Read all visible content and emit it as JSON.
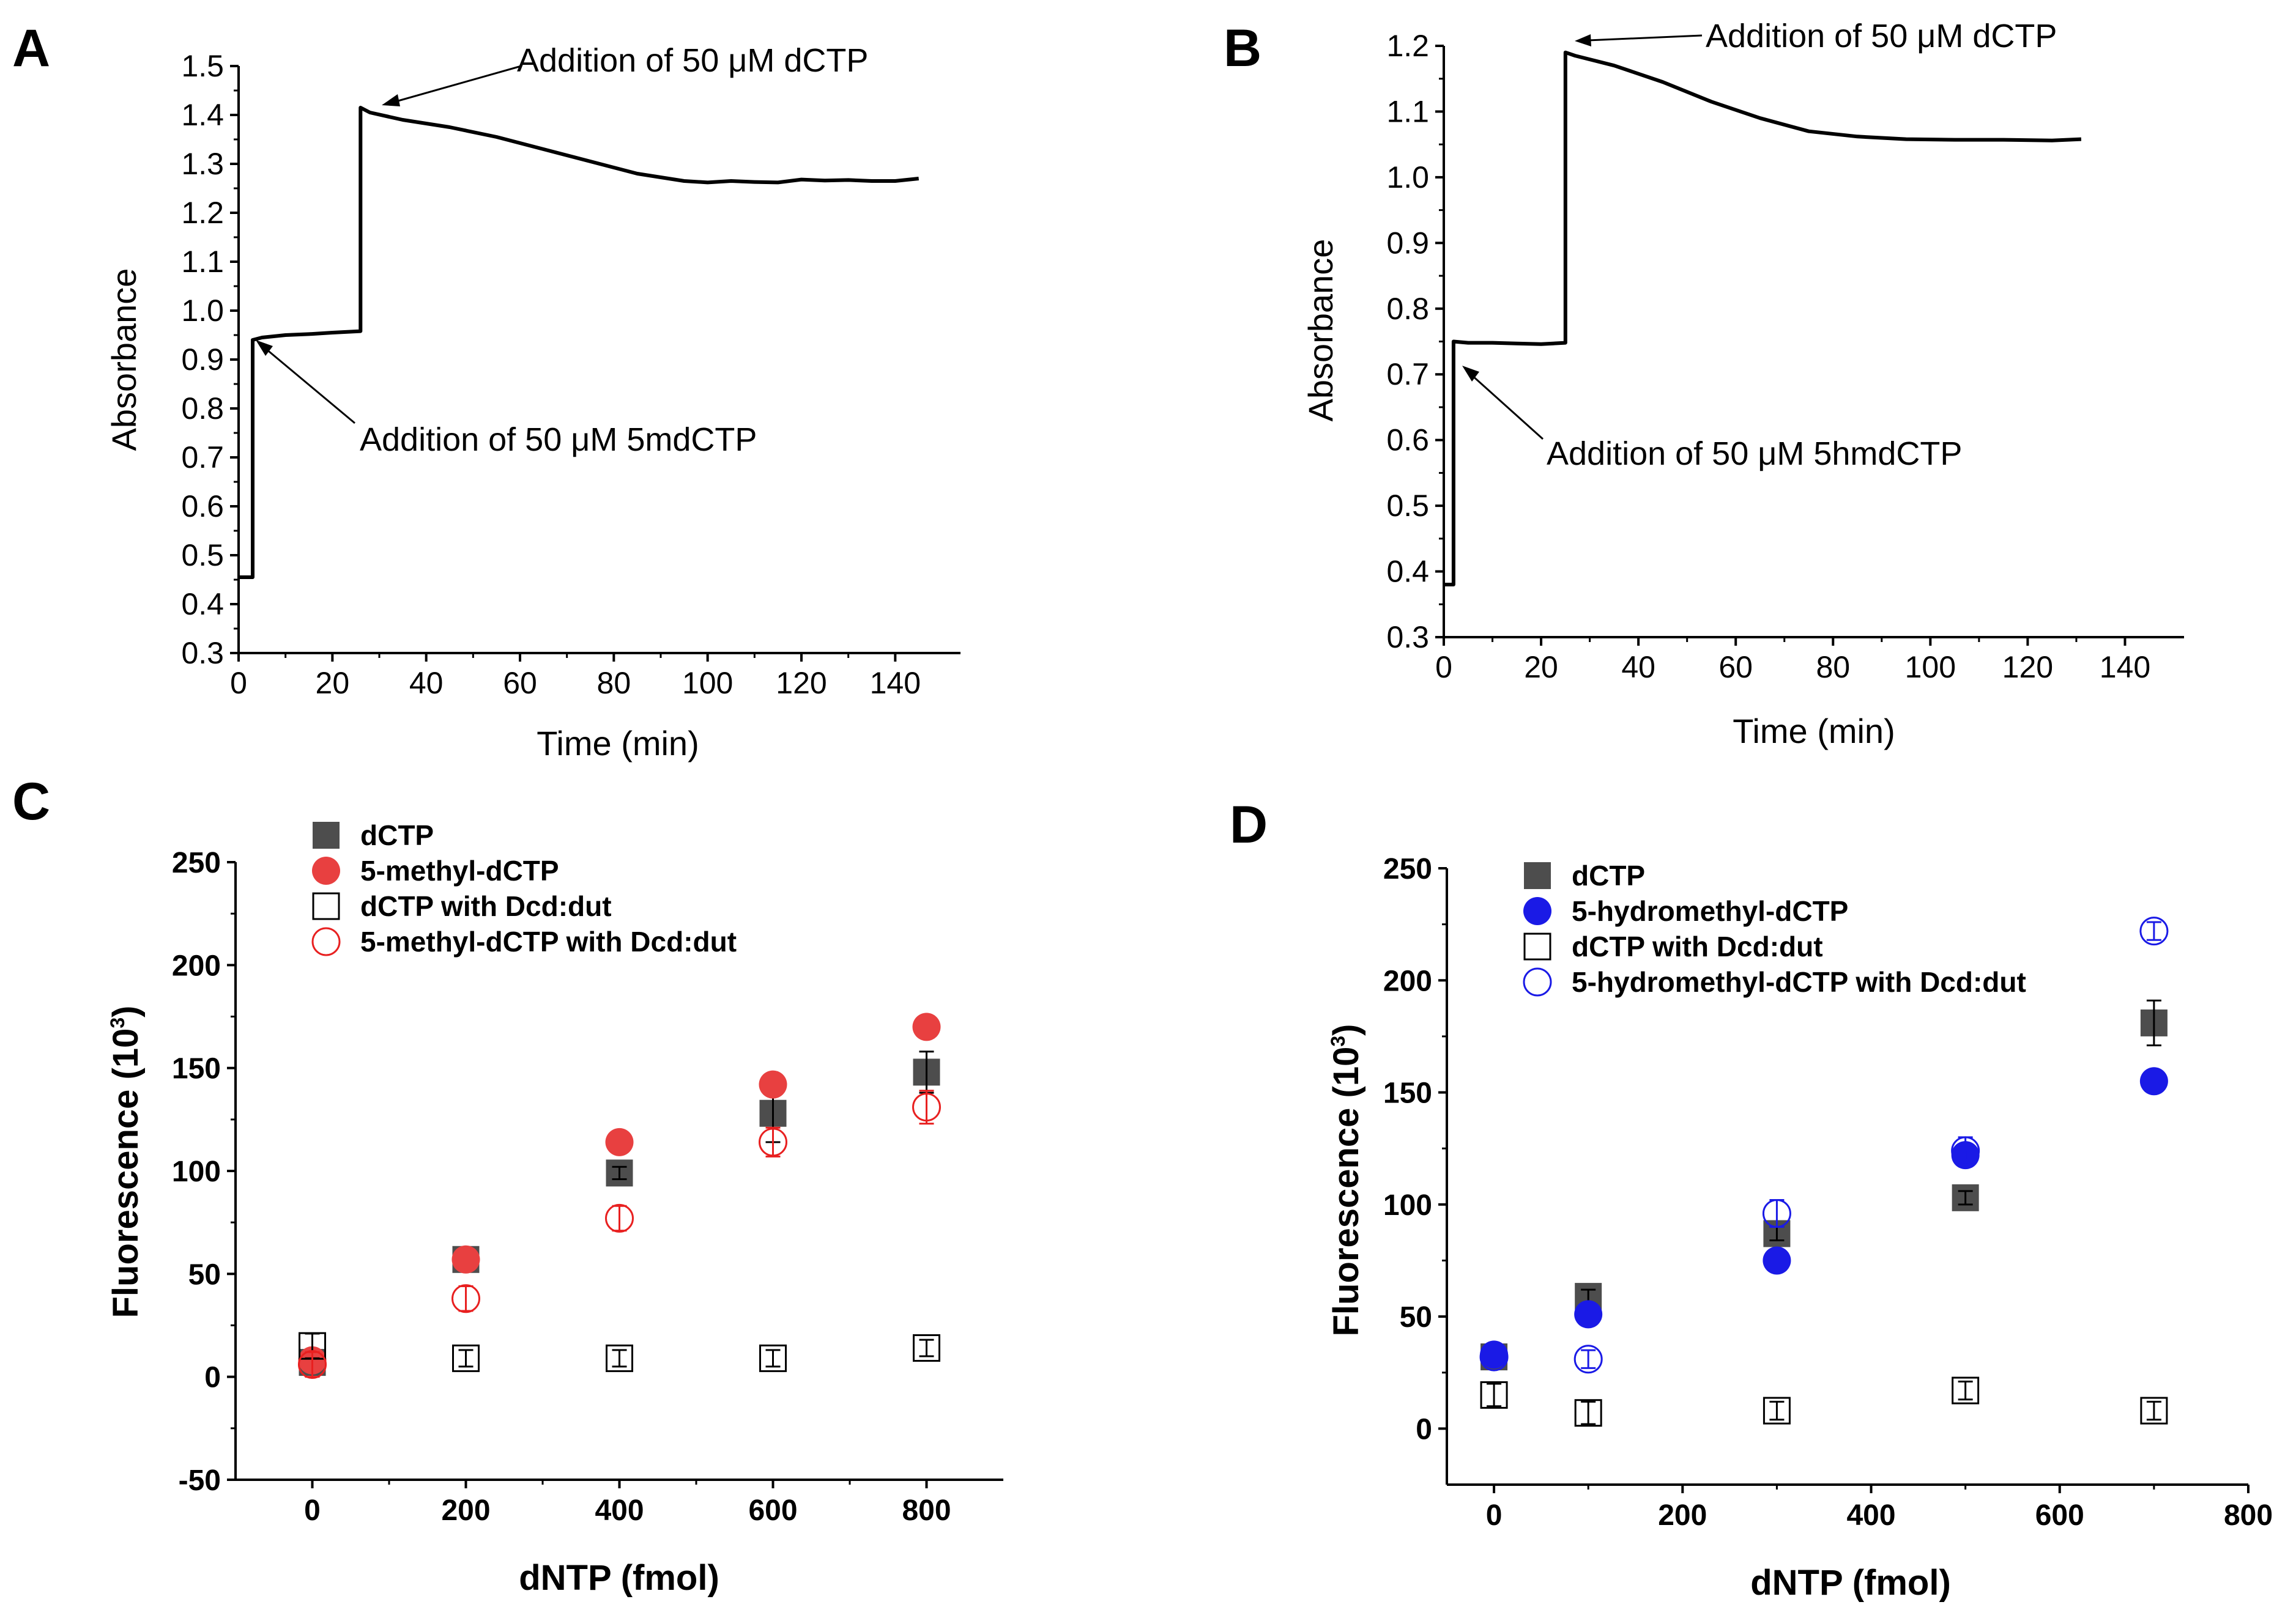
{
  "chart_data": [
    {
      "id": "A",
      "panel_label": "A",
      "type": "line",
      "title": "",
      "xlabel": "Time (min)",
      "ylabel": "Absorbance",
      "xlim": [
        0,
        150
      ],
      "ylim": [
        0.3,
        1.5
      ],
      "xticks": [
        0,
        20,
        40,
        60,
        80,
        100,
        120,
        140
      ],
      "yticks": [
        0.3,
        0.4,
        0.5,
        0.6,
        0.7,
        0.8,
        0.9,
        1.0,
        1.1,
        1.2,
        1.3,
        1.4,
        1.5
      ],
      "ytick_labels": [
        "0.3",
        "0.4",
        "0.5",
        "0.6",
        "0.7",
        "0.8",
        "0.9",
        "1.0",
        "1.1",
        "1.2",
        "1.3",
        "1.4",
        "1.5"
      ],
      "series": [
        {
          "name": "Absorbance",
          "x": [
            0,
            3,
            3,
            5,
            10,
            15,
            20,
            26,
            26,
            28,
            35,
            45,
            55,
            65,
            75,
            85,
            95,
            100,
            105,
            110,
            115,
            120,
            125,
            130,
            135,
            140,
            145
          ],
          "y": [
            0.455,
            0.455,
            0.94,
            0.945,
            0.95,
            0.952,
            0.955,
            0.958,
            1.415,
            1.405,
            1.39,
            1.375,
            1.355,
            1.33,
            1.305,
            1.28,
            1.265,
            1.262,
            1.265,
            1.263,
            1.262,
            1.268,
            1.266,
            1.267,
            1.265,
            1.265,
            1.27
          ]
        }
      ],
      "annotations": [
        {
          "text": "Addition of 50 μM dCTP",
          "x": 27,
          "y": 1.41
        },
        {
          "text": "Addition of 50 μM 5mdCTP",
          "x": 3.5,
          "y": 0.93
        }
      ]
    },
    {
      "id": "B",
      "panel_label": "B",
      "type": "line",
      "title": "",
      "xlabel": "Time (min)",
      "ylabel": "Absorbance",
      "xlim": [
        0,
        150
      ],
      "ylim": [
        0.3,
        1.2
      ],
      "xticks": [
        0,
        20,
        40,
        60,
        80,
        100,
        120,
        140
      ],
      "yticks": [
        0.3,
        0.4,
        0.5,
        0.6,
        0.7,
        0.8,
        0.9,
        1.0,
        1.1,
        1.2
      ],
      "ytick_labels": [
        "0.3",
        "0.4",
        "0.5",
        "0.6",
        "0.7",
        "0.8",
        "0.9",
        "1.0",
        "1.1",
        "1.2"
      ],
      "series": [
        {
          "name": "Absorbance",
          "x": [
            0,
            2,
            2,
            5,
            10,
            15,
            20,
            25,
            25,
            27,
            35,
            45,
            55,
            65,
            75,
            85,
            95,
            105,
            115,
            125,
            131
          ],
          "y": [
            0.38,
            0.38,
            0.75,
            0.748,
            0.748,
            0.747,
            0.746,
            0.748,
            1.19,
            1.185,
            1.17,
            1.145,
            1.115,
            1.09,
            1.07,
            1.062,
            1.058,
            1.057,
            1.057,
            1.056,
            1.058
          ]
        }
      ],
      "annotations": [
        {
          "text": "Addition of 50 μM dCTP",
          "x": 26,
          "y": 1.19
        },
        {
          "text": "Addition of 50 μM 5hmdCTP",
          "x": 2.5,
          "y": 0.735
        }
      ]
    },
    {
      "id": "C",
      "panel_label": "C",
      "type": "scatter",
      "title": "",
      "xlabel": "dNTP (fmol)",
      "ylabel": "Fluorescence (10",
      "ylabel_sup": "3",
      "ylabel_close": ")",
      "xlim": [
        -100,
        900
      ],
      "ylim": [
        -50,
        250
      ],
      "xticks": [
        0,
        200,
        400,
        600,
        800
      ],
      "yticks": [
        -50,
        0,
        50,
        100,
        150,
        200,
        250
      ],
      "series": [
        {
          "name": "dCTP",
          "marker": "square-filled",
          "color": "#4d4d4d",
          "x": [
            0,
            200,
            400,
            600,
            800
          ],
          "y": [
            7,
            57,
            99,
            128,
            148
          ],
          "err": [
            3,
            3,
            3,
            14,
            10
          ]
        },
        {
          "name": "5-methyl-dCTP",
          "marker": "circle-filled",
          "color": "#e84040",
          "x": [
            0,
            200,
            400,
            600,
            800
          ],
          "y": [
            8,
            57,
            114,
            142,
            170
          ],
          "err": [
            2,
            2,
            2,
            2,
            2
          ]
        },
        {
          "name": "dCTP with Dcd:dut",
          "marker": "square-open",
          "color": "#000000",
          "x": [
            0,
            200,
            400,
            600,
            800
          ],
          "y": [
            15,
            9,
            9,
            9,
            14
          ],
          "err": [
            6,
            4,
            4,
            4,
            4
          ]
        },
        {
          "name": "5-methyl-dCTP with Dcd:dut",
          "marker": "circle-open",
          "color": "#e82020",
          "x": [
            0,
            200,
            400,
            600,
            800
          ],
          "y": [
            6,
            38,
            77,
            114,
            131
          ],
          "err": [
            6,
            6,
            6,
            7,
            8
          ]
        }
      ],
      "legend": [
        "dCTP",
        "5-methyl-dCTP",
        "dCTP with Dcd:dut",
        "5-methyl-dCTP with Dcd:dut"
      ],
      "legend_position": "top-left"
    },
    {
      "id": "D",
      "panel_label": "D",
      "type": "scatter",
      "title": "",
      "xlabel": "dNTP (fmol)",
      "ylabel": "Fluorescence (10",
      "ylabel_sup": "3",
      "ylabel_close": ")",
      "xlim": [
        -50,
        800
      ],
      "ylim": [
        -25,
        250
      ],
      "xticks": [
        0,
        200,
        400,
        600,
        800
      ],
      "yticks": [
        0,
        50,
        100,
        150,
        200,
        250
      ],
      "series": [
        {
          "name": "dCTP",
          "marker": "square-filled",
          "color": "#4d4d4d",
          "x": [
            0,
            100,
            300,
            500,
            700
          ],
          "y": [
            32,
            59,
            87,
            103,
            181
          ],
          "err": [
            3,
            3,
            3,
            3,
            10
          ]
        },
        {
          "name": "5-hydromethyl-dCTP",
          "marker": "circle-filled",
          "color": "#1a1ae6",
          "x": [
            0,
            100,
            300,
            500,
            700
          ],
          "y": [
            33,
            51,
            75,
            122,
            155
          ],
          "err": [
            2,
            2,
            2,
            2,
            2
          ]
        },
        {
          "name": "dCTP with Dcd:dut",
          "marker": "square-open",
          "color": "#000000",
          "x": [
            0,
            100,
            300,
            500,
            700
          ],
          "y": [
            15,
            7,
            8,
            17,
            8
          ],
          "err": [
            5,
            5,
            4,
            4,
            4
          ]
        },
        {
          "name": "5-hydromethyl-dCTP with Dcd:dut",
          "marker": "circle-open",
          "color": "#1a1ae6",
          "x": [
            0,
            100,
            300,
            500,
            700
          ],
          "y": [
            32,
            31,
            96,
            124,
            222
          ],
          "err": [
            3,
            4,
            6,
            6,
            4
          ]
        }
      ],
      "legend": [
        "dCTP",
        "5-hydromethyl-dCTP",
        "dCTP with Dcd:dut",
        "5-hydromethyl-dCTP with Dcd:dut"
      ],
      "legend_position": "top-left"
    }
  ]
}
